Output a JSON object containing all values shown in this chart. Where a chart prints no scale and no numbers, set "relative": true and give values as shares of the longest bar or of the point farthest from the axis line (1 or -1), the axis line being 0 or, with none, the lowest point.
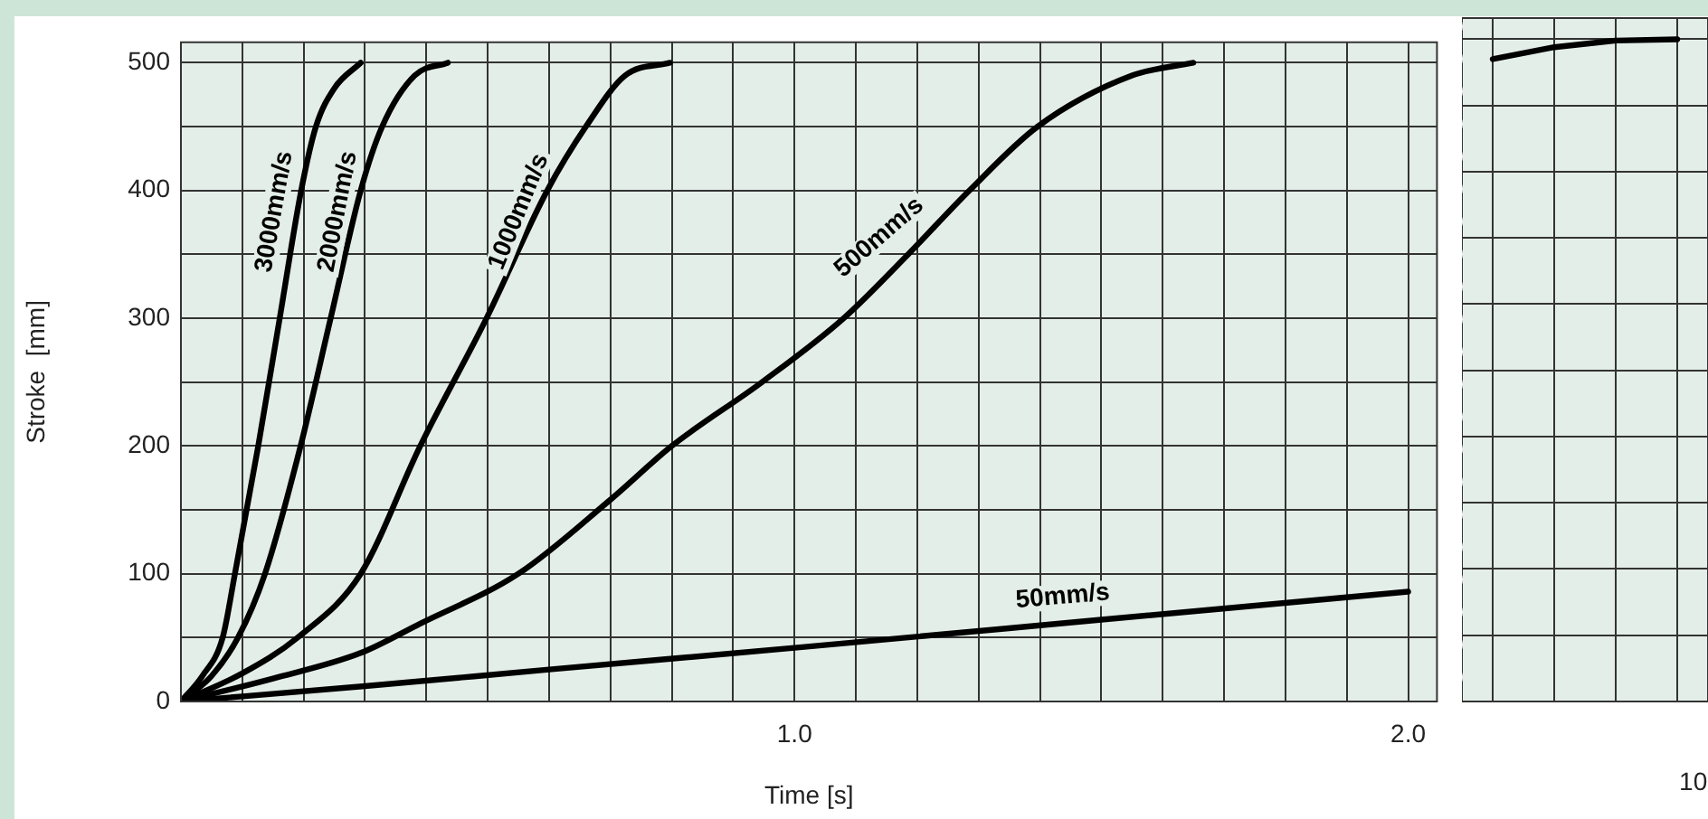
{
  "chart_data": [
    {
      "type": "line",
      "xlabel": "Time [s]",
      "ylabel": "Stroke  [mm]",
      "xlim": [
        0,
        2.047
      ],
      "ylim": [
        0,
        516
      ],
      "grid": true,
      "legend": false,
      "marker": "none",
      "line_style": "solid",
      "xticks": [
        {
          "value": 0,
          "label": null
        },
        {
          "value": 0.1,
          "label": null
        },
        {
          "value": 0.2,
          "label": null
        },
        {
          "value": 0.3,
          "label": null
        },
        {
          "value": 0.4,
          "label": null
        },
        {
          "value": 0.5,
          "label": null
        },
        {
          "value": 0.6,
          "label": null
        },
        {
          "value": 0.7,
          "label": null
        },
        {
          "value": 0.8,
          "label": null
        },
        {
          "value": 0.9,
          "label": null
        },
        {
          "value": 1,
          "label": "1.0"
        },
        {
          "value": 1.1,
          "label": null
        },
        {
          "value": 1.2,
          "label": null
        },
        {
          "value": 1.3,
          "label": null
        },
        {
          "value": 1.4,
          "label": null
        },
        {
          "value": 1.5,
          "label": null
        },
        {
          "value": 1.6,
          "label": null
        },
        {
          "value": 1.7,
          "label": null
        },
        {
          "value": 1.8,
          "label": null
        },
        {
          "value": 1.9,
          "label": null
        },
        {
          "value": 2,
          "label": "2.0"
        }
      ],
      "yticks": [
        0,
        {
          "value": 50,
          "label": null
        },
        100,
        {
          "value": 150,
          "label": null
        },
        200,
        {
          "value": 250,
          "label": null
        },
        300,
        {
          "value": 350,
          "label": null
        },
        400,
        {
          "value": 450,
          "label": null
        },
        500
      ],
      "series": [
        {
          "color": "#000000",
          "x": [
            0,
            0.035,
            0.068,
            0.088,
            0.126,
            0.161,
            0.196,
            0.22,
            0.25,
            0.293
          ],
          "values": [
            0,
            20,
            50,
            100,
            200,
            300,
            400,
            450,
            480,
            500
          ]
        },
        {
          "color": "#000000",
          "x": [
            0,
            0.05,
            0.093,
            0.137,
            0.195,
            0.244,
            0.293,
            0.328,
            0.381,
            0.435
          ],
          "values": [
            0,
            20,
            50,
            100,
            200,
            300,
            400,
            450,
            490,
            500
          ]
        },
        {
          "color": "#000000",
          "x": [
            0,
            0.1,
            0.19,
            0.293,
            0.39,
            0.498,
            0.597,
            0.66,
            0.724,
            0.797
          ],
          "values": [
            0,
            22,
            50,
            100,
            200,
            300,
            400,
            450,
            490,
            500
          ]
        },
        {
          "color": "#000000",
          "x": [
            0,
            0.15,
            0.293,
            0.39,
            0.55,
            0.7,
            0.8,
            0.947,
            1.08,
            1.185,
            1.285,
            1.396,
            1.55,
            1.65
          ],
          "values": [
            0,
            18,
            38,
            61,
            100,
            158,
            200,
            250,
            300,
            350,
            400,
            450,
            490,
            500
          ]
        },
        {
          "color": "#000000",
          "x": [
            0,
            0.3,
            0.6,
            1.0,
            1.5,
            2.0
          ],
          "values": [
            0,
            12,
            25,
            42,
            64,
            86
          ]
        }
      ],
      "annotations": [
        "3000mm/s",
        "2000mm/s",
        "1000mm/s",
        "500mm/s",
        "50mm/s"
      ]
    },
    {
      "type": "line",
      "relative": true,
      "grid": true,
      "legend": false,
      "marker": "none",
      "line_style": "solid",
      "categories": [
        null,
        null,
        null,
        null
      ],
      "series": [
        {
          "color": "#000000",
          "values": [
            0.97,
            0.988,
            0.998,
            1
          ]
        }
      ],
      "annotations": [
        "10"
      ]
    }
  ]
}
